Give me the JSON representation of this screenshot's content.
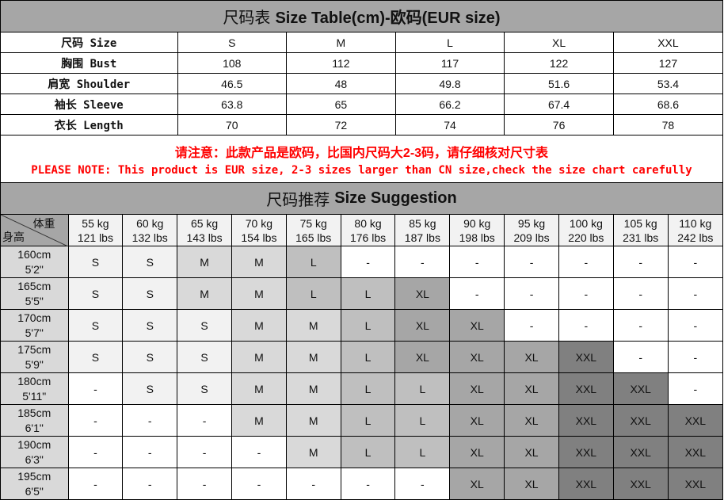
{
  "size_table": {
    "title_cn": "尺码表",
    "title_en": "Size Table(cm)-欧码(EUR size)",
    "rows": [
      {
        "label": "尺码 Size",
        "values": [
          "S",
          "M",
          "L",
          "XL",
          "XXL"
        ]
      },
      {
        "label": "胸围 Bust",
        "values": [
          "108",
          "112",
          "117",
          "122",
          "127"
        ]
      },
      {
        "label": "肩宽 Shoulder",
        "values": [
          "46.5",
          "48",
          "49.8",
          "51.6",
          "53.4"
        ]
      },
      {
        "label": "袖长 Sleeve",
        "values": [
          "63.8",
          "65",
          "66.2",
          "67.4",
          "68.6"
        ]
      },
      {
        "label": "衣长 Length",
        "values": [
          "70",
          "72",
          "74",
          "76",
          "78"
        ]
      }
    ]
  },
  "note": {
    "cn": "请注意：此款产品是欧码，比国内尺码大2-3码，请仔细核对尺寸表",
    "en": "PLEASE NOTE: This product is EUR size, 2-3 sizes larger than CN size,check the size chart carefully",
    "color": "#ff0000"
  },
  "suggestion": {
    "title_cn": "尺码推荐",
    "title_en": "Size Suggestion",
    "corner_weight": "体重",
    "corner_height": "身高",
    "weights": [
      {
        "kg": "55 kg",
        "lbs": "121 lbs"
      },
      {
        "kg": "60 kg",
        "lbs": "132 lbs"
      },
      {
        "kg": "65 kg",
        "lbs": "143 lbs"
      },
      {
        "kg": "70 kg",
        "lbs": "154 lbs"
      },
      {
        "kg": "75 kg",
        "lbs": "165 lbs"
      },
      {
        "kg": "80 kg",
        "lbs": "176 lbs"
      },
      {
        "kg": "85 kg",
        "lbs": "187 lbs"
      },
      {
        "kg": "90 kg",
        "lbs": "198 lbs"
      },
      {
        "kg": "95 kg",
        "lbs": "209 lbs"
      },
      {
        "kg": "100 kg",
        "lbs": "220 lbs"
      },
      {
        "kg": "105 kg",
        "lbs": "231 lbs"
      },
      {
        "kg": "110 kg",
        "lbs": "242 lbs"
      }
    ],
    "rows": [
      {
        "cm": "160cm",
        "ft": "5'2\"",
        "sizes": [
          "S",
          "S",
          "M",
          "M",
          "L",
          "-",
          "-",
          "-",
          "-",
          "-",
          "-",
          "-"
        ]
      },
      {
        "cm": "165cm",
        "ft": "5'5\"",
        "sizes": [
          "S",
          "S",
          "M",
          "M",
          "L",
          "L",
          "XL",
          "-",
          "-",
          "-",
          "-",
          "-"
        ]
      },
      {
        "cm": "170cm",
        "ft": "5'7\"",
        "sizes": [
          "S",
          "S",
          "S",
          "M",
          "M",
          "L",
          "XL",
          "XL",
          "-",
          "-",
          "-",
          "-"
        ]
      },
      {
        "cm": "175cm",
        "ft": "5'9\"",
        "sizes": [
          "S",
          "S",
          "S",
          "M",
          "M",
          "L",
          "XL",
          "XL",
          "XL",
          "XXL",
          "-",
          "-"
        ]
      },
      {
        "cm": "180cm",
        "ft": "5'11\"",
        "sizes": [
          "-",
          "S",
          "S",
          "M",
          "M",
          "L",
          "L",
          "XL",
          "XL",
          "XXL",
          "XXL",
          "-"
        ]
      },
      {
        "cm": "185cm",
        "ft": "6'1\"",
        "sizes": [
          "-",
          "-",
          "-",
          "M",
          "M",
          "L",
          "L",
          "XL",
          "XL",
          "XXL",
          "XXL",
          "XXL"
        ]
      },
      {
        "cm": "190cm",
        "ft": "6'3\"",
        "sizes": [
          "-",
          "-",
          "-",
          "-",
          "M",
          "L",
          "L",
          "XL",
          "XL",
          "XXL",
          "XXL",
          "XXL"
        ]
      },
      {
        "cm": "195cm",
        "ft": "6'5\"",
        "sizes": [
          "-",
          "-",
          "-",
          "-",
          "-",
          "-",
          "-",
          "XL",
          "XL",
          "XXL",
          "XXL",
          "XXL"
        ]
      }
    ],
    "size_colors": {
      "S": "#f2f2f2",
      "M": "#d9d9d9",
      "L": "#bfbfbf",
      "XL": "#a6a6a6",
      "XXL": "#808080",
      "-": "#ffffff"
    }
  }
}
